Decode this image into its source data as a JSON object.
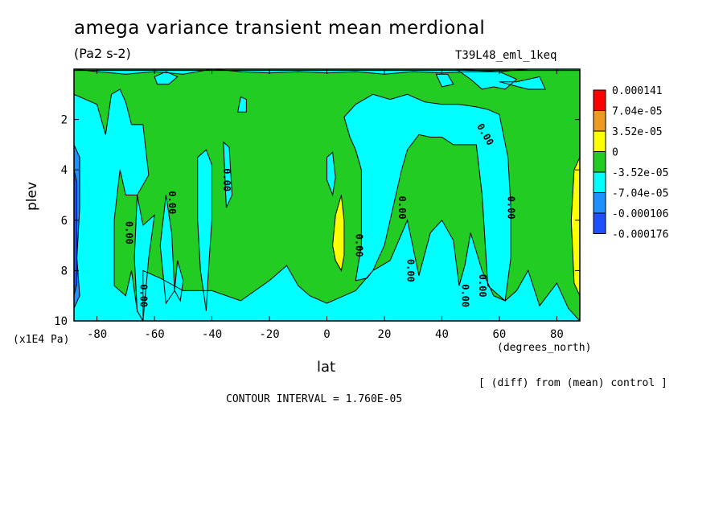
{
  "title": "amega variance transient mean merdional",
  "units": "(Pa2 s-2)",
  "experiment": "T39L48_eml_1keq",
  "note": "[ (diff) from (mean) control ]",
  "contour_interval": "CONTOUR INTERVAL = 1.760E-05",
  "chart_data": {
    "type": "heatmap",
    "xlabel": "lat",
    "xunit": "(degrees_north)",
    "ylabel": "plev",
    "yunit": "(x1E4 Pa)",
    "xlim": [
      -88,
      88
    ],
    "ylim": [
      10,
      0
    ],
    "xticks": [
      -80,
      -60,
      -40,
      -20,
      0,
      20,
      40,
      60,
      80
    ],
    "xtick_labels": [
      "-80",
      "-60",
      "-40",
      "-20",
      "0",
      "20",
      "40",
      "60",
      "80"
    ],
    "yticks": [
      2,
      4,
      6,
      8,
      10
    ],
    "ytick_labels": [
      "2",
      "4",
      "6",
      "8",
      "10"
    ],
    "colorbar": {
      "levels": [
        "0.000141",
        "7.04e-05",
        "3.52e-05",
        "0",
        "-3.52e-05",
        "-7.04e-05",
        "-0.000106",
        "-0.000176"
      ],
      "colors": [
        "#ff0000",
        "#ee9922",
        "#ffff00",
        "#22cc22",
        "#00ffff",
        "#1e90ff",
        "#1e50ff"
      ]
    },
    "contour_label": "0.00",
    "contour_label_positions": [
      {
        "lat": -69,
        "plev": 6.5,
        "rot": 90
      },
      {
        "lat": -64,
        "plev": 9.0,
        "rot": 90
      },
      {
        "lat": -54,
        "plev": 5.3,
        "rot": 90
      },
      {
        "lat": -35,
        "plev": 4.4,
        "rot": 90
      },
      {
        "lat": 11,
        "plev": 7.0,
        "rot": 90
      },
      {
        "lat": 26,
        "plev": 5.5,
        "rot": 90
      },
      {
        "lat": 29,
        "plev": 8.0,
        "rot": 90
      },
      {
        "lat": 48,
        "plev": 9.0,
        "rot": 90
      },
      {
        "lat": 54,
        "plev": 8.6,
        "rot": 90
      },
      {
        "lat": 55,
        "plev": 2.6,
        "rot": 60
      },
      {
        "lat": 64,
        "plev": 5.5,
        "rot": 90
      }
    ],
    "regions": [
      {
        "level": "0",
        "polygon": [
          [
            -88,
            0
          ],
          [
            88,
            0
          ],
          [
            88,
            10
          ],
          [
            -88,
            10
          ]
        ]
      },
      {
        "level": "-3.52e-05",
        "polygon": [
          [
            -88,
            1.0
          ],
          [
            -80,
            1.4
          ],
          [
            -77,
            2.6
          ],
          [
            -75,
            1.0
          ],
          [
            -72,
            0.8
          ],
          [
            -70,
            1.3
          ],
          [
            -68,
            2.2
          ],
          [
            -64,
            2.2
          ],
          [
            -62,
            4.2
          ],
          [
            -66,
            5.0
          ],
          [
            -70,
            5.0
          ],
          [
            -72,
            4.0
          ],
          [
            -74,
            6.0
          ],
          [
            -74,
            8.6
          ],
          [
            -70,
            9.0
          ],
          [
            -68,
            8.0
          ],
          [
            -66,
            9.6
          ],
          [
            -64,
            10
          ],
          [
            -88,
            10
          ]
        ]
      },
      {
        "level": "-3.52e-05",
        "polygon": [
          [
            -66,
            5.0
          ],
          [
            -64,
            6.2
          ],
          [
            -62,
            6.0
          ],
          [
            -60,
            5.8
          ],
          [
            -62,
            7.5
          ],
          [
            -64,
            10
          ],
          [
            -66,
            9.6
          ],
          [
            -67,
            7.5
          ]
        ]
      },
      {
        "level": "-3.52e-05",
        "polygon": [
          [
            -56,
            5.0
          ],
          [
            -54,
            6.5
          ],
          [
            -53,
            8.8
          ],
          [
            -56,
            9.3
          ],
          [
            -58,
            7.0
          ]
        ]
      },
      {
        "level": "-3.52e-05",
        "polygon": [
          [
            -52,
            7.6
          ],
          [
            -50,
            8.4
          ],
          [
            -51,
            9.2
          ],
          [
            -53,
            8.8
          ]
        ]
      },
      {
        "level": "-3.52e-05",
        "polygon": [
          [
            -45,
            3.5
          ],
          [
            -42,
            3.2
          ],
          [
            -40,
            3.8
          ],
          [
            -40,
            6.0
          ],
          [
            -41,
            7.6
          ],
          [
            -42,
            9.6
          ],
          [
            -44,
            8.0
          ],
          [
            -45,
            6.0
          ]
        ]
      },
      {
        "level": "-3.52e-05",
        "polygon": [
          [
            -36,
            2.9
          ],
          [
            -34,
            3.1
          ],
          [
            -33,
            5.0
          ],
          [
            -35,
            5.5
          ]
        ]
      },
      {
        "level": "-3.52e-05",
        "polygon": [
          [
            -30,
            1.1
          ],
          [
            -28,
            1.2
          ],
          [
            -28,
            1.7
          ],
          [
            -31,
            1.7
          ]
        ]
      },
      {
        "level": "-3.52e-05",
        "polygon": [
          [
            -64,
            8.0
          ],
          [
            -58,
            8.3
          ],
          [
            -50,
            8.8
          ],
          [
            -40,
            8.8
          ],
          [
            -30,
            9.2
          ],
          [
            -20,
            8.4
          ],
          [
            -14,
            7.8
          ],
          [
            -10,
            8.6
          ],
          [
            -6,
            9.0
          ],
          [
            0,
            9.3
          ],
          [
            10,
            8.8
          ],
          [
            16,
            8.0
          ],
          [
            22,
            7.6
          ],
          [
            28,
            6.0
          ],
          [
            32,
            8.2
          ],
          [
            36,
            6.5
          ],
          [
            40,
            6.0
          ],
          [
            44,
            6.8
          ],
          [
            46,
            8.6
          ],
          [
            48,
            7.8
          ],
          [
            50,
            6.5
          ],
          [
            54,
            8.0
          ],
          [
            58,
            9.0
          ],
          [
            62,
            9.2
          ],
          [
            66,
            8.8
          ],
          [
            70,
            8.0
          ],
          [
            74,
            9.4
          ],
          [
            80,
            8.5
          ],
          [
            84,
            9.5
          ],
          [
            88,
            10
          ],
          [
            -64,
            10
          ]
        ]
      },
      {
        "level": "-3.52e-05",
        "polygon": [
          [
            -88,
            0
          ],
          [
            -80,
            0.1
          ],
          [
            -70,
            0.2
          ],
          [
            -60,
            0.1
          ],
          [
            -50,
            0.2
          ],
          [
            -40,
            0
          ],
          [
            -30,
            0.1
          ],
          [
            -20,
            0.15
          ],
          [
            -10,
            0.1
          ],
          [
            0,
            0.15
          ],
          [
            10,
            0.1
          ],
          [
            20,
            0.2
          ],
          [
            30,
            0.1
          ],
          [
            40,
            0.15
          ],
          [
            50,
            0.1
          ],
          [
            60,
            0.1
          ],
          [
            70,
            0
          ],
          [
            88,
            0
          ],
          [
            88,
            0.05
          ],
          [
            -88,
            0.05
          ]
        ]
      },
      {
        "level": "-3.52e-05",
        "polygon": [
          [
            -60,
            0.3
          ],
          [
            -56,
            0.1
          ],
          [
            -52,
            0.3
          ],
          [
            -55,
            0.6
          ],
          [
            -59,
            0.6
          ]
        ]
      },
      {
        "level": "-3.52e-05",
        "polygon": [
          [
            38,
            0.2
          ],
          [
            42,
            0.2
          ],
          [
            44,
            0.6
          ],
          [
            40,
            0.7
          ]
        ]
      },
      {
        "level": "-3.52e-05",
        "polygon": [
          [
            45,
            0
          ],
          [
            60,
            0.1
          ],
          [
            66,
            0.4
          ],
          [
            62,
            0.8
          ],
          [
            58,
            0.7
          ],
          [
            54,
            0.8
          ],
          [
            50,
            0.4
          ]
        ]
      },
      {
        "level": "-3.52e-05",
        "polygon": [
          [
            60,
            0.5
          ],
          [
            66,
            0.5
          ],
          [
            74,
            0.3
          ],
          [
            76,
            0.8
          ],
          [
            70,
            0.8
          ]
        ]
      },
      {
        "level": "-3.52e-05",
        "polygon": [
          [
            6,
            1.9
          ],
          [
            10,
            1.4
          ],
          [
            16,
            1.0
          ],
          [
            22,
            1.2
          ],
          [
            28,
            1.0
          ],
          [
            34,
            1.3
          ],
          [
            40,
            1.4
          ],
          [
            46,
            1.4
          ],
          [
            52,
            1.5
          ],
          [
            56,
            1.6
          ],
          [
            60,
            1.8
          ],
          [
            63,
            3.5
          ],
          [
            64,
            5.5
          ],
          [
            64,
            7.5
          ],
          [
            62,
            9.2
          ],
          [
            56,
            8.6
          ],
          [
            54,
            5.0
          ],
          [
            52,
            3.0
          ],
          [
            48,
            3.0
          ],
          [
            44,
            3.0
          ],
          [
            40,
            2.7
          ],
          [
            36,
            2.7
          ],
          [
            32,
            2.6
          ],
          [
            28,
            3.2
          ],
          [
            26,
            4.0
          ],
          [
            22,
            6.0
          ],
          [
            20,
            7.0
          ],
          [
            16,
            8.0
          ],
          [
            14,
            8.3
          ],
          [
            10,
            8.4
          ],
          [
            12,
            7.0
          ],
          [
            12,
            4.0
          ],
          [
            10,
            3.2
          ],
          [
            8,
            2.7
          ]
        ]
      },
      {
        "level": "-3.52e-05",
        "polygon": [
          [
            0,
            3.5
          ],
          [
            2,
            3.3
          ],
          [
            3,
            4.3
          ],
          [
            2,
            5.0
          ],
          [
            0,
            4.4
          ]
        ]
      },
      {
        "level": "3.52e-05",
        "polygon": [
          [
            3,
            5.8
          ],
          [
            5,
            5.0
          ],
          [
            6,
            6.0
          ],
          [
            6,
            7.4
          ],
          [
            5,
            8.0
          ],
          [
            3,
            7.6
          ],
          [
            2,
            7.0
          ]
        ]
      },
      {
        "level": "3.52e-05",
        "polygon": [
          [
            86,
            4.0
          ],
          [
            88,
            3.5
          ],
          [
            88,
            9.0
          ],
          [
            86,
            8.5
          ],
          [
            85,
            6.0
          ]
        ]
      },
      {
        "level": "-7.04e-05",
        "polygon": [
          [
            -88,
            3.0
          ],
          [
            -86,
            3.5
          ],
          [
            -86,
            5.5
          ],
          [
            -87,
            7.5
          ],
          [
            -86,
            9.0
          ],
          [
            -88,
            9.5
          ]
        ]
      },
      {
        "level": "-0.000106",
        "polygon": [
          [
            -88,
            4.0
          ],
          [
            -87,
            4.5
          ],
          [
            -87,
            8.5
          ],
          [
            -88,
            9.0
          ]
        ]
      }
    ]
  }
}
